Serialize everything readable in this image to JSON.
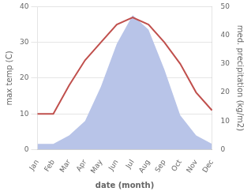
{
  "chart_data": {
    "type": "line",
    "xlabel": "date (month)",
    "ylabel": "max temp (C)",
    "y2label": "med. precipitation (kg/m2)",
    "categories": [
      "Jan",
      "Feb",
      "Mar",
      "Apr",
      "May",
      "Jun",
      "Jul",
      "Aug",
      "Sep",
      "Oct",
      "Nov",
      "Dec"
    ],
    "series": [
      {
        "type": "area",
        "axis": "y2",
        "color": "#b8c4e8",
        "values": [
          2,
          2,
          5,
          10,
          22,
          37,
          47,
          42,
          28,
          12,
          5,
          2
        ]
      },
      {
        "type": "line",
        "color": "#c0504d",
        "values": [
          10,
          10,
          18,
          25,
          30,
          35,
          37,
          35,
          30,
          24,
          16,
          11
        ]
      }
    ],
    "ylim": [
      0,
      40
    ],
    "yticks": [
      0,
      10,
      20,
      30,
      40
    ],
    "y2lim": [
      0,
      50
    ],
    "y2ticks": [
      0,
      10,
      20,
      30,
      40,
      50
    ],
    "grid": true
  }
}
